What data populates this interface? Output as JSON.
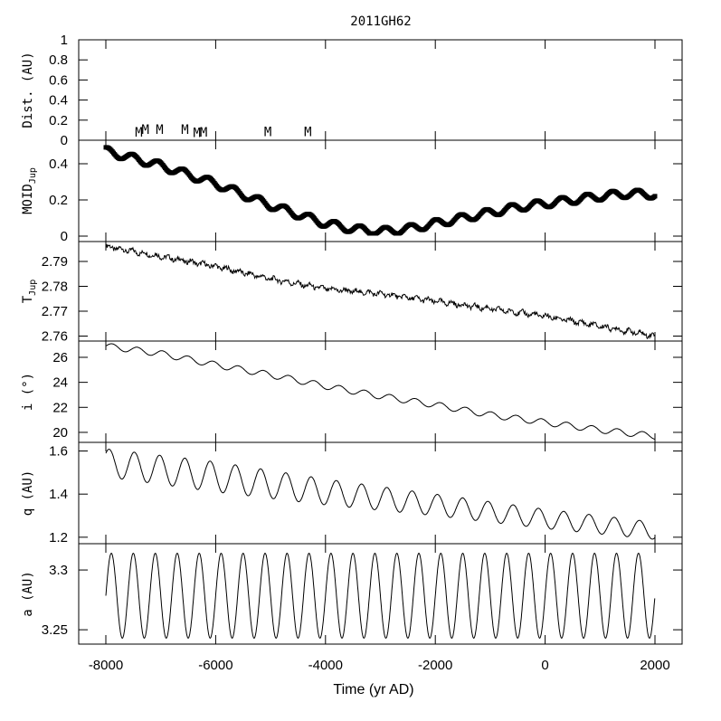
{
  "chart_data": {
    "type": "line",
    "title": "2011GH62",
    "xlabel": "Time (yr AD)",
    "xlim": [
      -8000,
      2000
    ],
    "x_ticks": [
      -8000,
      -6000,
      -4000,
      -2000,
      0,
      2000
    ],
    "x_tick_labels": [
      "-8000",
      "-6000",
      "-4000",
      "-2000",
      "0",
      "2000"
    ],
    "panels": [
      {
        "key": "dist",
        "ylabel": "Dist. (AU)",
        "ylim": [
          0,
          1
        ],
        "y_ticks": [
          0,
          0.2,
          0.4,
          0.6,
          0.8,
          1
        ],
        "y_tick_labels": [
          "0",
          "0.2",
          "0.4",
          "0.6",
          "0.8",
          "1"
        ],
        "markers": {
          "symbol": "M",
          "x": [
            -7400,
            -7280,
            -7020,
            -6560,
            -6340,
            -6220,
            -5050,
            -4320
          ],
          "y": [
            0.035,
            0.065,
            0.065,
            0.065,
            0.03,
            0.035,
            0.04,
            0.04
          ]
        }
      },
      {
        "key": "moid",
        "ylabel": "MOID",
        "ylabel_sub": "Jup",
        "ylim": [
          -0.03,
          0.53
        ],
        "y_ticks": [
          0,
          0.2,
          0.4
        ],
        "y_tick_labels": [
          "0",
          "0.2",
          "0.4"
        ],
        "series": {
          "x": [
            -8000,
            -7500,
            -7000,
            -6500,
            -6000,
            -5500,
            -5000,
            -4500,
            -4000,
            -3500,
            -3000,
            -2500,
            -2000,
            -1500,
            -1000,
            -500,
            0,
            500,
            1000,
            1500,
            2000
          ],
          "y": [
            0.47,
            0.43,
            0.39,
            0.34,
            0.29,
            0.23,
            0.17,
            0.12,
            0.07,
            0.04,
            0.025,
            0.04,
            0.07,
            0.1,
            0.13,
            0.16,
            0.18,
            0.2,
            0.22,
            0.235,
            0.23
          ]
        },
        "oscillation": {
          "period_yr": 460,
          "amplitude": 0.022
        }
      },
      {
        "key": "tjup",
        "ylabel": "T",
        "ylabel_sub": "Jup",
        "ylim": [
          2.758,
          2.798
        ],
        "y_ticks": [
          2.76,
          2.77,
          2.78,
          2.79
        ],
        "y_tick_labels": [
          "2.76",
          "2.77",
          "2.78",
          "2.79"
        ],
        "series": {
          "x": [
            -8000,
            -7000,
            -6000,
            -5000,
            -4000,
            -3000,
            -2000,
            -1000,
            0,
            1000,
            2000
          ],
          "y": [
            2.796,
            2.792,
            2.788,
            2.783,
            2.779,
            2.777,
            2.774,
            2.771,
            2.768,
            2.764,
            2.76
          ]
        }
      },
      {
        "key": "i",
        "ylabel": "i (°)",
        "ylim": [
          19.2,
          27.3
        ],
        "y_ticks": [
          20,
          22,
          24,
          26
        ],
        "y_tick_labels": [
          "20",
          "22",
          "24",
          "26"
        ],
        "series": {
          "x": [
            -8000,
            -7000,
            -6000,
            -5000,
            -4000,
            -3000,
            -2000,
            -1000,
            0,
            1000,
            2000
          ],
          "y": [
            26.9,
            26.3,
            25.4,
            24.6,
            23.7,
            22.9,
            22.2,
            21.4,
            20.8,
            20.2,
            19.7
          ]
        },
        "oscillation": {
          "period_yr": 460,
          "amplitude": 0.25
        }
      },
      {
        "key": "q",
        "ylabel": "q (AU)",
        "ylim": [
          1.17,
          1.64
        ],
        "y_ticks": [
          1.2,
          1.4,
          1.6
        ],
        "y_tick_labels": [
          "1.2",
          "1.4",
          "1.6"
        ],
        "series": {
          "x": [
            -8000,
            -6000,
            -4000,
            -2000,
            0,
            2000
          ],
          "upper": [
            1.61,
            1.55,
            1.47,
            1.4,
            1.33,
            1.27
          ],
          "lower": [
            1.48,
            1.41,
            1.35,
            1.3,
            1.24,
            1.19
          ]
        },
        "oscillation": {
          "period_yr": 460
        }
      },
      {
        "key": "a",
        "ylabel": "a (AU)",
        "ylim": [
          3.238,
          3.322
        ],
        "y_ticks": [
          3.25,
          3.3
        ],
        "y_tick_labels": [
          "3.25",
          "3.3"
        ],
        "series": {
          "max": 3.314,
          "min": 3.243,
          "first_peak_yr": -7900
        },
        "oscillation": {
          "period_yr": 400
        }
      }
    ]
  }
}
